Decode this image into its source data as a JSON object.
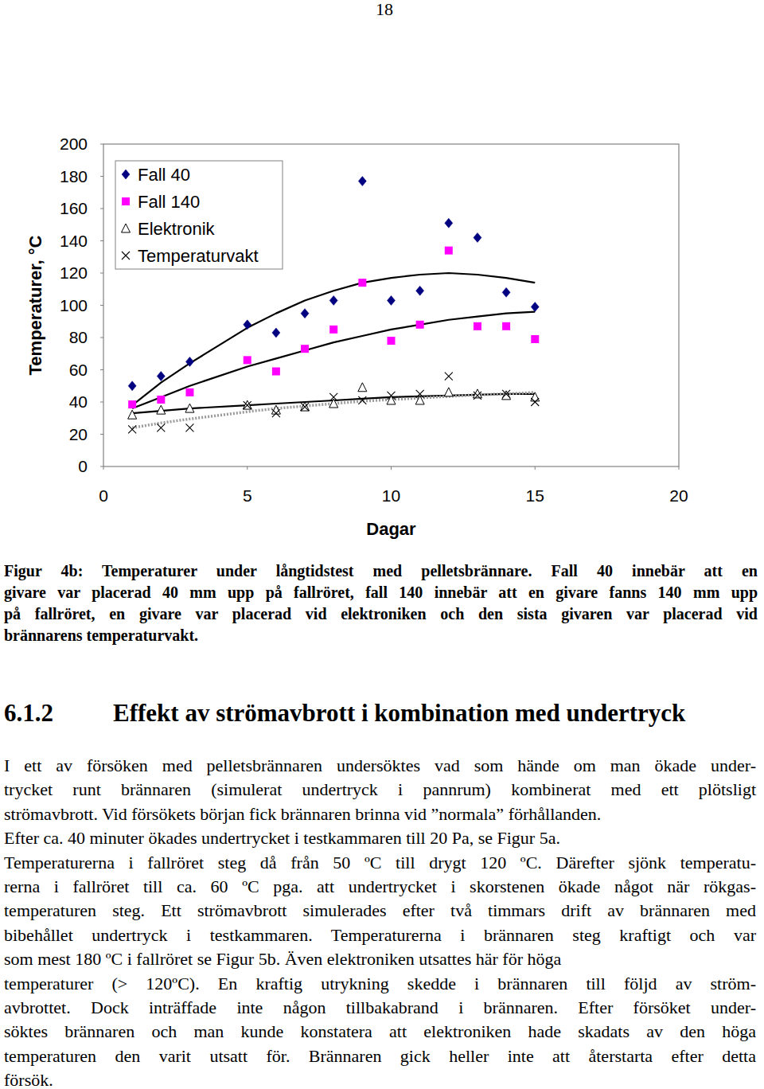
{
  "page_number": "18",
  "chart_data": {
    "type": "scatter",
    "x_label": "Dagar",
    "y_label": "Temperaturer, °C",
    "x": [
      1,
      2,
      3,
      5,
      6,
      7,
      8,
      9,
      10,
      11,
      12,
      13,
      14,
      15
    ],
    "series": [
      {
        "name": "Fall 40",
        "color": "#000080",
        "marker": "diamond",
        "line_style": "solid",
        "values": [
          50,
          56,
          65,
          88,
          83,
          95,
          103,
          177,
          103,
          109,
          151,
          142,
          108,
          99
        ],
        "trend": [
          38,
          52,
          64,
          86,
          95,
          103,
          109,
          114,
          117,
          119,
          120,
          119,
          117,
          114
        ]
      },
      {
        "name": "Fall 140",
        "color": "#ff00ff",
        "marker": "square",
        "line_style": "solid",
        "values": [
          38.5,
          41.5,
          46,
          66,
          59,
          73,
          85,
          114,
          78,
          88,
          134,
          87,
          87,
          79
        ],
        "trend": [
          36,
          43,
          50,
          62,
          67,
          72,
          77,
          81,
          85,
          88,
          91,
          93,
          95,
          96
        ]
      },
      {
        "name": "Elektronik",
        "color": "#000000",
        "marker": "triangle",
        "line_style": "solid",
        "values": [
          32,
          35,
          36,
          38,
          35,
          37,
          39,
          49,
          41,
          41,
          46,
          45,
          44,
          43
        ],
        "trend": [
          33,
          34.5,
          36,
          38,
          39,
          40,
          41,
          42,
          43,
          43.5,
          44,
          44.5,
          45,
          45
        ]
      },
      {
        "name": "Temperaturvakt",
        "color": "#000000",
        "marker": "x",
        "line_style": "dotted",
        "values": [
          23,
          24,
          24,
          38,
          33,
          37,
          43,
          41,
          44,
          45,
          56,
          44,
          45,
          40
        ],
        "trend": [
          24,
          27,
          29.5,
          34,
          36,
          37.5,
          39,
          40.5,
          41.5,
          42.5,
          43.5,
          44.5,
          45,
          46
        ]
      }
    ],
    "xlim": [
      0,
      20
    ],
    "xticks": [
      0,
      5,
      10,
      15,
      20
    ],
    "ylim": [
      0,
      200
    ],
    "yticks": [
      0,
      20,
      40,
      60,
      80,
      100,
      120,
      140,
      160,
      180,
      200
    ],
    "grid": false,
    "legend": "upper-left"
  },
  "caption": {
    "lines": [
      "Figur 4b: Temperaturer under långtidstest med pelletsbrännare. Fall 40 innebär att en",
      "givare var placerad 40 mm upp på fallröret, fall 140 innebär att en givare fanns 140 mm upp",
      "på fallröret, en givare var placerad vid elektroniken och den sista givaren var placerad vid",
      "brännarens temperaturvakt."
    ]
  },
  "section": {
    "number": "6.1.2",
    "title": "Effekt av strömavbrott i kombination med undertryck",
    "lines": [
      "I ett av försöken med pelletsbrännaren undersöktes vad som hände om man ökade under-",
      "trycket runt brännaren (simulerat undertryck i pannrum) kombinerat med ett plötsligt",
      "strömavbrott. Vid försökets början fick brännaren brinna vid ”normala” förhållanden.",
      "Efter ca. 40 minuter ökades undertrycket i testkammaren till 20 Pa, se Figur 5a.",
      "Temperaturerna i fallröret steg då från 50 ºC till drygt 120 ºC. Därefter sjönk temperatu-",
      "rerna i fallröret till ca. 60 ºC pga. att undertrycket i skorstenen ökade något när rökgas-",
      "temperaturen steg. Ett strömavbrott simulerades efter två timmars drift av brännaren med",
      "bibehållet undertryck i testkammaren. Temperaturerna i brännaren steg kraftigt och var",
      "som mest 180 ºC i fallröret se Figur 5b. Även elektroniken utsattes här för höga",
      "temperaturer (> 120ºC). En kraftig utrykning skedde i brännaren till följd av ström-",
      "avbrottet. Dock inträffade inte någon tillbakabrand i brännaren. Efter försöket under-",
      "söktes brännaren och man kunde konstatera att elektroniken hade skadats av den höga",
      "temperaturen den varit utsatt för. Brännaren gick heller inte att återstarta efter detta",
      "försök."
    ]
  }
}
